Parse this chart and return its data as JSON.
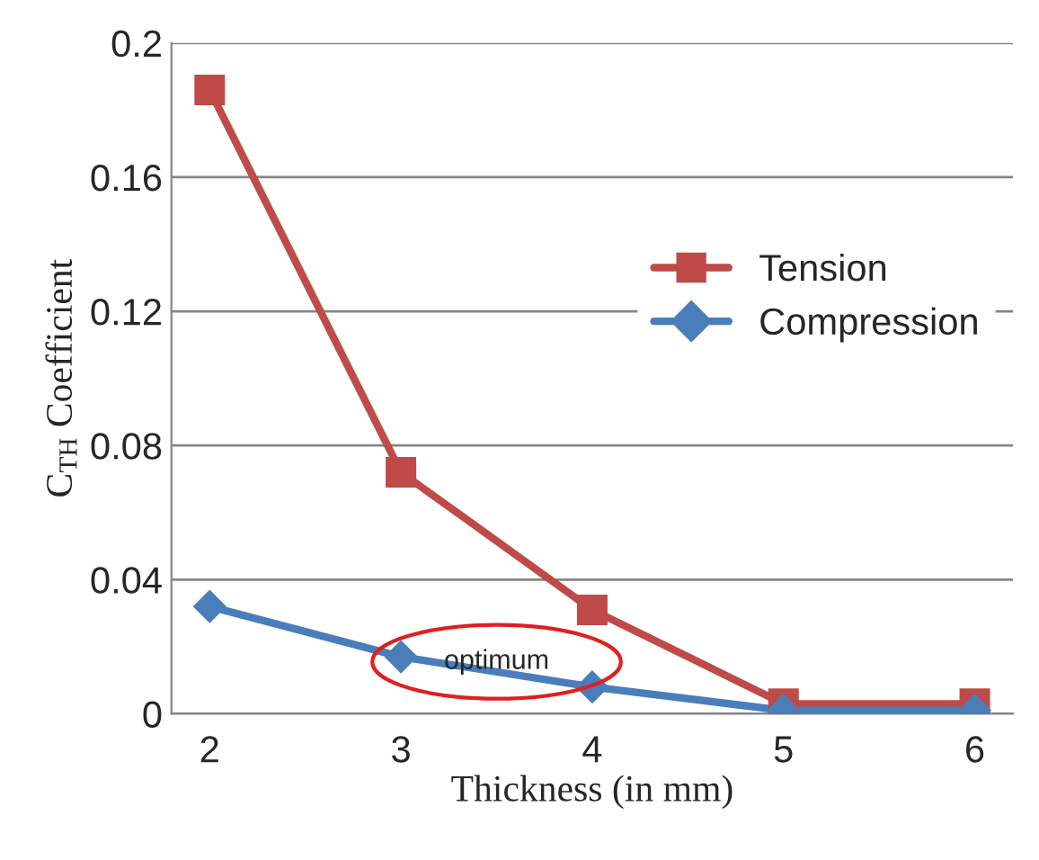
{
  "chart_data": {
    "type": "line",
    "xlabel": "Thickness (in mm)",
    "ylabel": "C$_{TH}$ Coefficient",
    "categories": [
      "2",
      "3",
      "4",
      "5",
      "6"
    ],
    "series": [
      {
        "name": "Tension",
        "color": "#be4b48",
        "marker": "square",
        "values": [
          0.186,
          0.072,
          0.031,
          0.003,
          0.003
        ]
      },
      {
        "name": "Compression",
        "color": "#4a7ebb",
        "marker": "diamond",
        "values": [
          0.032,
          0.017,
          0.008,
          0.001,
          0.001
        ]
      }
    ],
    "ylim": [
      0,
      0.2
    ],
    "yticks": [
      0,
      0.04,
      0.08,
      0.12,
      0.16,
      0.2
    ],
    "grid": "y",
    "legend": "right",
    "annotations": [
      "optimum"
    ]
  }
}
